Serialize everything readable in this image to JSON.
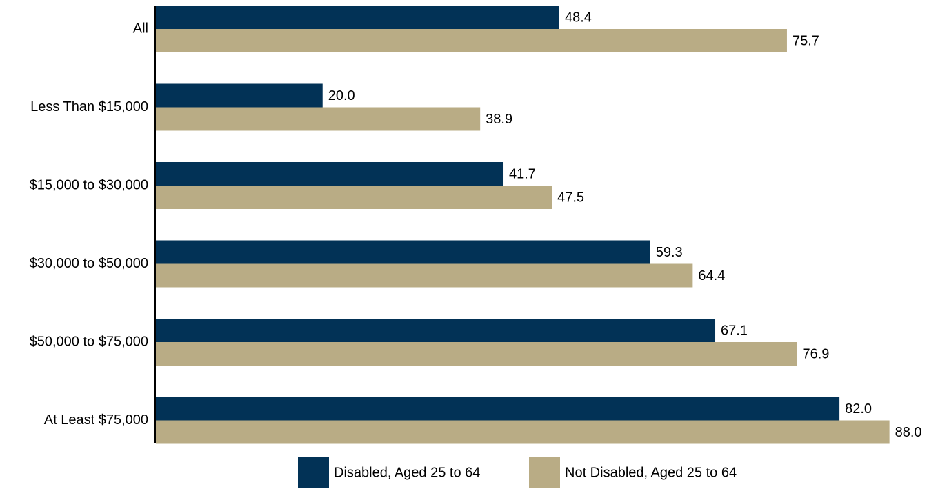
{
  "chart_data": {
    "type": "hbar",
    "categories": [
      "All",
      "Less Than $15,000",
      "$15,000 to $30,000",
      "$30,000 to $50,000",
      "$50,000 to $75,000",
      "At Least $75,000"
    ],
    "series": [
      {
        "name": "Disabled, Aged 25 to 64",
        "color": "#023256",
        "values": [
          48.4,
          20.0,
          41.7,
          59.3,
          67.1,
          82.0
        ],
        "value_labels": [
          "48.4",
          "20.0",
          "41.7",
          "59.3",
          "67.1",
          "82.0"
        ]
      },
      {
        "name": "Not Disabled, Aged 25 to 64",
        "color": "#b9ac85",
        "values": [
          75.7,
          38.9,
          47.5,
          64.4,
          76.9,
          88.0
        ],
        "value_labels": [
          "75.7",
          "38.9",
          "47.5",
          "64.4",
          "76.9",
          "88.0"
        ]
      }
    ],
    "xlim": [
      0,
      90
    ],
    "legend": "bottom"
  }
}
